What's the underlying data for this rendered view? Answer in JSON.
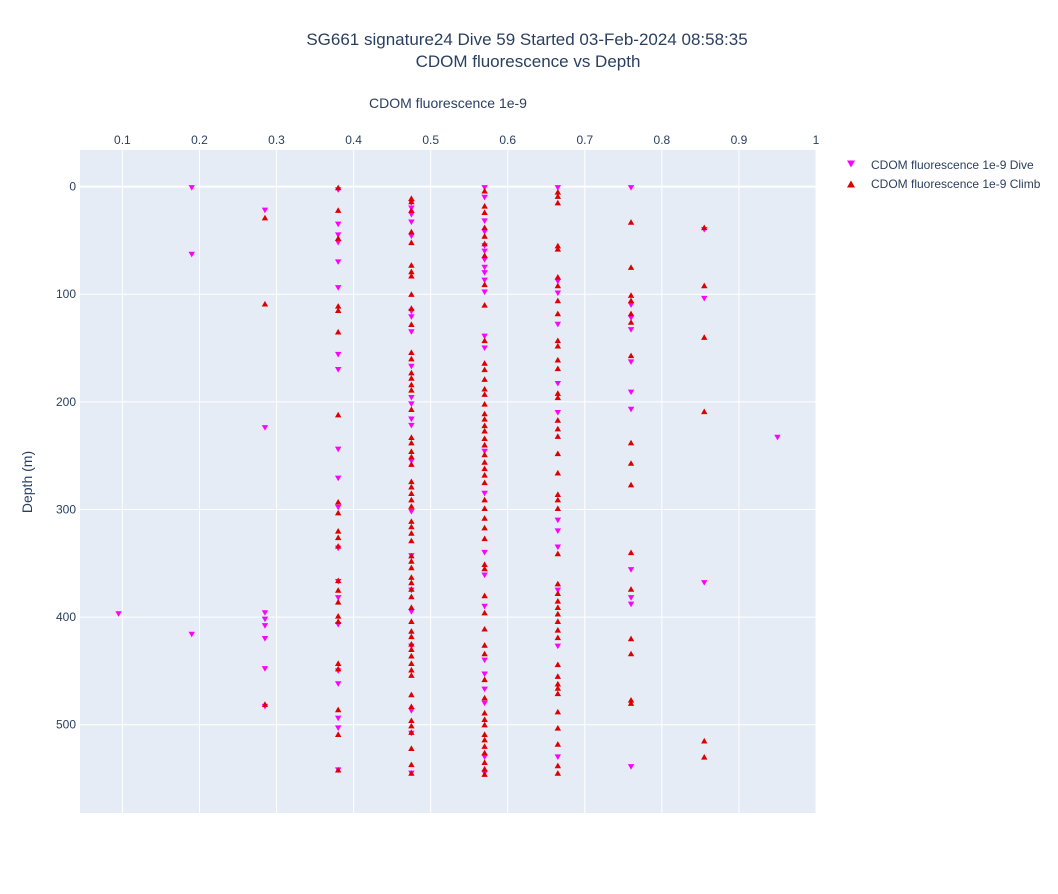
{
  "chart_data": {
    "type": "scatter",
    "title": "SG661 signature24 Dive 59 Started 03-Feb-2024 08:58:35",
    "subtitle": "CDOM fluorescence vs Depth",
    "xlabel": "CDOM fluorescence 1e-9",
    "ylabel": "Depth (m)",
    "xlim": [
      0.045,
      1.0
    ],
    "ylim": [
      582,
      -34
    ],
    "x_axis_position": "top",
    "y_reversed": true,
    "grid": true,
    "x_ticks": [
      0.1,
      0.2,
      0.3,
      0.4,
      0.5,
      0.6,
      0.7,
      0.8,
      0.9,
      1
    ],
    "x_tick_labels": [
      "0.1",
      "0.2",
      "0.3",
      "0.4",
      "0.5",
      "0.6",
      "0.7",
      "0.8",
      "0.9",
      "1"
    ],
    "y_ticks": [
      0,
      100,
      200,
      300,
      400,
      500
    ],
    "y_tick_labels": [
      "0",
      "100",
      "200",
      "300",
      "400",
      "500"
    ],
    "legend_position": "top-right",
    "colors": {
      "dive": "#ff00ff",
      "climb": "#dd0000",
      "plot_bg": "#e5ecf6",
      "grid": "#ffffff",
      "text": "#2a3f5f"
    },
    "series": [
      {
        "name": "CDOM fluorescence 1e-9 Dive",
        "marker": "triangle-down",
        "color": "#ff00ff",
        "points": [
          [
            0.19,
            1
          ],
          [
            0.19,
            63
          ],
          [
            0.095,
            397
          ],
          [
            0.19,
            416
          ],
          [
            0.285,
            22
          ],
          [
            0.285,
            224
          ],
          [
            0.285,
            396
          ],
          [
            0.285,
            402
          ],
          [
            0.285,
            408
          ],
          [
            0.285,
            420
          ],
          [
            0.285,
            448
          ],
          [
            0.285,
            483
          ],
          [
            0.38,
            3
          ],
          [
            0.38,
            35
          ],
          [
            0.38,
            45
          ],
          [
            0.38,
            52
          ],
          [
            0.38,
            70
          ],
          [
            0.38,
            94
          ],
          [
            0.38,
            156
          ],
          [
            0.38,
            170
          ],
          [
            0.38,
            244
          ],
          [
            0.38,
            271
          ],
          [
            0.38,
            298
          ],
          [
            0.38,
            336
          ],
          [
            0.38,
            367
          ],
          [
            0.38,
            382
          ],
          [
            0.38,
            407
          ],
          [
            0.38,
            450
          ],
          [
            0.38,
            462
          ],
          [
            0.38,
            494
          ],
          [
            0.38,
            503
          ],
          [
            0.38,
            542
          ],
          [
            0.475,
            15
          ],
          [
            0.475,
            20
          ],
          [
            0.475,
            26
          ],
          [
            0.475,
            33
          ],
          [
            0.475,
            46
          ],
          [
            0.475,
            116
          ],
          [
            0.475,
            121
          ],
          [
            0.475,
            135
          ],
          [
            0.475,
            167
          ],
          [
            0.475,
            196
          ],
          [
            0.475,
            202
          ],
          [
            0.475,
            216
          ],
          [
            0.475,
            222
          ],
          [
            0.475,
            255
          ],
          [
            0.475,
            302
          ],
          [
            0.475,
            343
          ],
          [
            0.475,
            375
          ],
          [
            0.475,
            395
          ],
          [
            0.475,
            427
          ],
          [
            0.475,
            487
          ],
          [
            0.475,
            508
          ],
          [
            0.475,
            545
          ],
          [
            0.57,
            1
          ],
          [
            0.57,
            10
          ],
          [
            0.57,
            32
          ],
          [
            0.57,
            42
          ],
          [
            0.57,
            55
          ],
          [
            0.57,
            60
          ],
          [
            0.57,
            68
          ],
          [
            0.57,
            75
          ],
          [
            0.57,
            80
          ],
          [
            0.57,
            87
          ],
          [
            0.57,
            98
          ],
          [
            0.57,
            139
          ],
          [
            0.57,
            150
          ],
          [
            0.57,
            246
          ],
          [
            0.57,
            285
          ],
          [
            0.57,
            340
          ],
          [
            0.57,
            361
          ],
          [
            0.57,
            390
          ],
          [
            0.57,
            440
          ],
          [
            0.57,
            453
          ],
          [
            0.57,
            467
          ],
          [
            0.57,
            480
          ],
          [
            0.57,
            530
          ],
          [
            0.57,
            545
          ],
          [
            0.665,
            1
          ],
          [
            0.665,
            88
          ],
          [
            0.665,
            99
          ],
          [
            0.665,
            128
          ],
          [
            0.665,
            183
          ],
          [
            0.665,
            210
          ],
          [
            0.665,
            310
          ],
          [
            0.665,
            320
          ],
          [
            0.665,
            335
          ],
          [
            0.665,
            375
          ],
          [
            0.665,
            427
          ],
          [
            0.665,
            530
          ],
          [
            0.76,
            1
          ],
          [
            0.76,
            110
          ],
          [
            0.76,
            122
          ],
          [
            0.76,
            133
          ],
          [
            0.76,
            163
          ],
          [
            0.76,
            191
          ],
          [
            0.76,
            207
          ],
          [
            0.76,
            356
          ],
          [
            0.76,
            382
          ],
          [
            0.76,
            388
          ],
          [
            0.76,
            539
          ],
          [
            0.855,
            40
          ],
          [
            0.855,
            104
          ],
          [
            0.855,
            368
          ],
          [
            0.95,
            233
          ]
        ]
      },
      {
        "name": "CDOM fluorescence 1e-9 Climb",
        "marker": "triangle-up",
        "color": "#dd0000",
        "points": [
          [
            0.285,
            29
          ],
          [
            0.285,
            109
          ],
          [
            0.285,
            481
          ],
          [
            0.38,
            1
          ],
          [
            0.38,
            22
          ],
          [
            0.38,
            48
          ],
          [
            0.38,
            111
          ],
          [
            0.38,
            115
          ],
          [
            0.38,
            135
          ],
          [
            0.38,
            212
          ],
          [
            0.38,
            293
          ],
          [
            0.38,
            303
          ],
          [
            0.38,
            320
          ],
          [
            0.38,
            326
          ],
          [
            0.38,
            334
          ],
          [
            0.38,
            366
          ],
          [
            0.38,
            375
          ],
          [
            0.38,
            386
          ],
          [
            0.38,
            399
          ],
          [
            0.38,
            404
          ],
          [
            0.38,
            443
          ],
          [
            0.38,
            448
          ],
          [
            0.38,
            486
          ],
          [
            0.38,
            509
          ],
          [
            0.38,
            542
          ],
          [
            0.475,
            11
          ],
          [
            0.475,
            14
          ],
          [
            0.475,
            22
          ],
          [
            0.475,
            42
          ],
          [
            0.475,
            52
          ],
          [
            0.475,
            73
          ],
          [
            0.475,
            79
          ],
          [
            0.475,
            83
          ],
          [
            0.475,
            100
          ],
          [
            0.475,
            113
          ],
          [
            0.475,
            128
          ],
          [
            0.475,
            154
          ],
          [
            0.475,
            160
          ],
          [
            0.475,
            173
          ],
          [
            0.475,
            178
          ],
          [
            0.475,
            184
          ],
          [
            0.475,
            189
          ],
          [
            0.475,
            207
          ],
          [
            0.475,
            233
          ],
          [
            0.475,
            238
          ],
          [
            0.475,
            246
          ],
          [
            0.475,
            251
          ],
          [
            0.475,
            258
          ],
          [
            0.475,
            274
          ],
          [
            0.475,
            279
          ],
          [
            0.475,
            285
          ],
          [
            0.475,
            291
          ],
          [
            0.475,
            297
          ],
          [
            0.475,
            311
          ],
          [
            0.475,
            316
          ],
          [
            0.475,
            322
          ],
          [
            0.475,
            329
          ],
          [
            0.475,
            343
          ],
          [
            0.475,
            348
          ],
          [
            0.475,
            354
          ],
          [
            0.475,
            363
          ],
          [
            0.475,
            368
          ],
          [
            0.475,
            374
          ],
          [
            0.475,
            381
          ],
          [
            0.475,
            391
          ],
          [
            0.475,
            404
          ],
          [
            0.475,
            413
          ],
          [
            0.475,
            418
          ],
          [
            0.475,
            425
          ],
          [
            0.475,
            430
          ],
          [
            0.475,
            436
          ],
          [
            0.475,
            443
          ],
          [
            0.475,
            449
          ],
          [
            0.475,
            454
          ],
          [
            0.475,
            472
          ],
          [
            0.475,
            483
          ],
          [
            0.475,
            496
          ],
          [
            0.475,
            501
          ],
          [
            0.475,
            507
          ],
          [
            0.475,
            522
          ],
          [
            0.475,
            537
          ],
          [
            0.475,
            545
          ],
          [
            0.57,
            4
          ],
          [
            0.57,
            18
          ],
          [
            0.57,
            24
          ],
          [
            0.57,
            38
          ],
          [
            0.57,
            46
          ],
          [
            0.57,
            53
          ],
          [
            0.57,
            64
          ],
          [
            0.57,
            91
          ],
          [
            0.57,
            110
          ],
          [
            0.57,
            143
          ],
          [
            0.57,
            164
          ],
          [
            0.57,
            170
          ],
          [
            0.57,
            179
          ],
          [
            0.57,
            188
          ],
          [
            0.57,
            193
          ],
          [
            0.57,
            202
          ],
          [
            0.57,
            211
          ],
          [
            0.57,
            216
          ],
          [
            0.57,
            222
          ],
          [
            0.57,
            227
          ],
          [
            0.57,
            234
          ],
          [
            0.57,
            240
          ],
          [
            0.57,
            249
          ],
          [
            0.57,
            256
          ],
          [
            0.57,
            262
          ],
          [
            0.57,
            268
          ],
          [
            0.57,
            275
          ],
          [
            0.57,
            291
          ],
          [
            0.57,
            299
          ],
          [
            0.57,
            308
          ],
          [
            0.57,
            317
          ],
          [
            0.57,
            327
          ],
          [
            0.57,
            351
          ],
          [
            0.57,
            355
          ],
          [
            0.57,
            380
          ],
          [
            0.57,
            396
          ],
          [
            0.57,
            411
          ],
          [
            0.57,
            426
          ],
          [
            0.57,
            434
          ],
          [
            0.57,
            458
          ],
          [
            0.57,
            475
          ],
          [
            0.57,
            489
          ],
          [
            0.57,
            495
          ],
          [
            0.57,
            500
          ],
          [
            0.57,
            509
          ],
          [
            0.57,
            514
          ],
          [
            0.57,
            520
          ],
          [
            0.57,
            526
          ],
          [
            0.57,
            535
          ],
          [
            0.57,
            541
          ],
          [
            0.57,
            546
          ],
          [
            0.665,
            5
          ],
          [
            0.665,
            9
          ],
          [
            0.665,
            15
          ],
          [
            0.665,
            55
          ],
          [
            0.665,
            58
          ],
          [
            0.665,
            84
          ],
          [
            0.665,
            92
          ],
          [
            0.665,
            106
          ],
          [
            0.665,
            118
          ],
          [
            0.665,
            143
          ],
          [
            0.665,
            148
          ],
          [
            0.665,
            161
          ],
          [
            0.665,
            169
          ],
          [
            0.665,
            192
          ],
          [
            0.665,
            196
          ],
          [
            0.665,
            217
          ],
          [
            0.665,
            225
          ],
          [
            0.665,
            232
          ],
          [
            0.665,
            248
          ],
          [
            0.665,
            266
          ],
          [
            0.665,
            286
          ],
          [
            0.665,
            291
          ],
          [
            0.665,
            299
          ],
          [
            0.665,
            341
          ],
          [
            0.665,
            369
          ],
          [
            0.665,
            378
          ],
          [
            0.665,
            385
          ],
          [
            0.665,
            391
          ],
          [
            0.665,
            397
          ],
          [
            0.665,
            404
          ],
          [
            0.665,
            412
          ],
          [
            0.665,
            419
          ],
          [
            0.665,
            444
          ],
          [
            0.665,
            455
          ],
          [
            0.665,
            462
          ],
          [
            0.665,
            466
          ],
          [
            0.665,
            471
          ],
          [
            0.665,
            488
          ],
          [
            0.665,
            503
          ],
          [
            0.665,
            518
          ],
          [
            0.665,
            538
          ],
          [
            0.665,
            545
          ],
          [
            0.76,
            33
          ],
          [
            0.76,
            75
          ],
          [
            0.76,
            101
          ],
          [
            0.76,
            106
          ],
          [
            0.76,
            118
          ],
          [
            0.76,
            126
          ],
          [
            0.76,
            157
          ],
          [
            0.76,
            238
          ],
          [
            0.76,
            257
          ],
          [
            0.76,
            277
          ],
          [
            0.76,
            340
          ],
          [
            0.76,
            374
          ],
          [
            0.76,
            420
          ],
          [
            0.76,
            434
          ],
          [
            0.76,
            477
          ],
          [
            0.76,
            480
          ],
          [
            0.855,
            38
          ],
          [
            0.855,
            92
          ],
          [
            0.855,
            140
          ],
          [
            0.855,
            209
          ],
          [
            0.855,
            515
          ],
          [
            0.855,
            530
          ]
        ]
      }
    ]
  }
}
